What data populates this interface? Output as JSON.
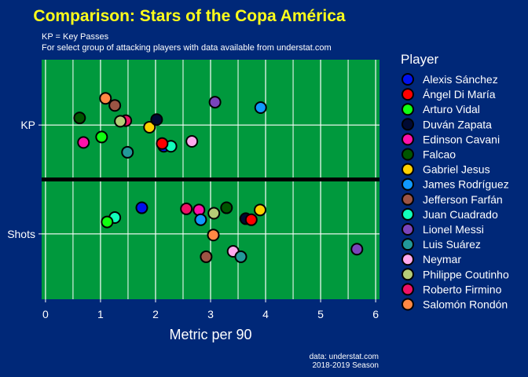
{
  "chart_data": {
    "type": "scatter",
    "title": "Comparison: Stars of the Copa América",
    "subtitle_lines": [
      "KP = Key Passes",
      "For select group of attacking players with data available from underst​at.com"
    ],
    "xlabel": "Metric per 90",
    "ylabel": "",
    "xlim": [
      -0.07,
      6.07
    ],
    "xticks": [
      "0",
      "1",
      "2",
      "3",
      "4",
      "5",
      "6"
    ],
    "ycategories": [
      "Shots",
      "KP"
    ],
    "caption_lines": [
      "data: understat.com",
      "2018-2019 Season"
    ],
    "legend": {
      "title": "Player",
      "position": "right"
    },
    "grid": true,
    "colors": {
      "background": "#002878",
      "panel": "#00993D",
      "title": "#FFFF1A",
      "divider": "#000000"
    },
    "players": [
      {
        "name": "Alexis Sánchez",
        "color": "#0011EE"
      },
      {
        "name": "Ángel Di María",
        "color": "#FF0000"
      },
      {
        "name": "Arturo Vidal",
        "color": "#11FF11"
      },
      {
        "name": "Duván Zapata",
        "color": "#000A33"
      },
      {
        "name": "Edinson Cavani",
        "color": "#FF11AA"
      },
      {
        "name": "Falcao",
        "color": "#005500"
      },
      {
        "name": "Gabriel Jesus",
        "color": "#FFD000"
      },
      {
        "name": "James Rodríguez",
        "color": "#1199FF"
      },
      {
        "name": "Jefferson Farfán",
        "color": "#9B5444"
      },
      {
        "name": "Juan Cuadrado",
        "color": "#11FFBB"
      },
      {
        "name": "Lionel Messi",
        "color": "#7A44BB"
      },
      {
        "name": "Luis Suárez",
        "color": "#229999"
      },
      {
        "name": "Neymar",
        "color": "#FFAAEE"
      },
      {
        "name": "Philippe Coutinho",
        "color": "#B5CC77"
      },
      {
        "name": "Roberto Firmino",
        "color": "#EE1166"
      },
      {
        "name": "Salomón Rondón",
        "color": "#FF8844"
      }
    ],
    "points": [
      {
        "player": "Salomón Rondón",
        "metric": "KP",
        "x": 1.09,
        "y_jitter": 2.245
      },
      {
        "player": "Jefferson Farfán",
        "metric": "KP",
        "x": 1.26,
        "y_jitter": 2.18
      },
      {
        "player": "Falcao",
        "metric": "KP",
        "x": 0.62,
        "y_jitter": 2.065
      },
      {
        "player": "Roberto Firmino",
        "metric": "KP",
        "x": 1.46,
        "y_jitter": 2.04
      },
      {
        "player": "Philippe Coutinho",
        "metric": "KP",
        "x": 1.36,
        "y_jitter": 2.035
      },
      {
        "player": "Gabriel Jesus",
        "metric": "KP",
        "x": 1.89,
        "y_jitter": 1.98
      },
      {
        "player": "Duván Zapata",
        "metric": "KP",
        "x": 2.02,
        "y_jitter": 2.05
      },
      {
        "player": "Arturo Vidal",
        "metric": "KP",
        "x": 1.02,
        "y_jitter": 1.89
      },
      {
        "player": "Edinson Cavani",
        "metric": "KP",
        "x": 0.69,
        "y_jitter": 1.84
      },
      {
        "player": "Alexis Sánchez",
        "metric": "KP",
        "x": 2.15,
        "y_jitter": 1.805
      },
      {
        "player": "Juan Cuadrado",
        "metric": "KP",
        "x": 2.28,
        "y_jitter": 1.805
      },
      {
        "player": "Ángel Di María",
        "metric": "KP",
        "x": 2.12,
        "y_jitter": 1.83
      },
      {
        "player": "Neymar",
        "metric": "KP",
        "x": 2.66,
        "y_jitter": 1.85
      },
      {
        "player": "Luis Suárez",
        "metric": "KP",
        "x": 1.49,
        "y_jitter": 1.75
      },
      {
        "player": "Lionel Messi",
        "metric": "KP",
        "x": 3.08,
        "y_jitter": 2.21
      },
      {
        "player": "James Rodríguez",
        "metric": "KP",
        "x": 3.91,
        "y_jitter": 2.16
      },
      {
        "player": "Alexis Sánchez",
        "metric": "Shots",
        "x": 1.75,
        "y_jitter": 1.24
      },
      {
        "player": "Juan Cuadrado",
        "metric": "Shots",
        "x": 1.26,
        "y_jitter": 1.15
      },
      {
        "player": "Arturo Vidal",
        "metric": "Shots",
        "x": 1.12,
        "y_jitter": 1.11
      },
      {
        "player": "Roberto Firmino",
        "metric": "Shots",
        "x": 2.56,
        "y_jitter": 1.23
      },
      {
        "player": "Edinson Cavani",
        "metric": "Shots",
        "x": 2.79,
        "y_jitter": 1.22
      },
      {
        "player": "James Rodríguez",
        "metric": "Shots",
        "x": 2.82,
        "y_jitter": 1.13
      },
      {
        "player": "Philippe Coutinho",
        "metric": "Shots",
        "x": 3.06,
        "y_jitter": 1.19
      },
      {
        "player": "Falcao",
        "metric": "Shots",
        "x": 3.29,
        "y_jitter": 1.24
      },
      {
        "player": "Duván Zapata",
        "metric": "Shots",
        "x": 3.64,
        "y_jitter": 1.14
      },
      {
        "player": "Ángel Di María",
        "metric": "Shots",
        "x": 3.74,
        "y_jitter": 1.13
      },
      {
        "player": "Gabriel Jesus",
        "metric": "Shots",
        "x": 3.9,
        "y_jitter": 1.22
      },
      {
        "player": "Salomón Rondón",
        "metric": "Shots",
        "x": 3.05,
        "y_jitter": 0.99
      },
      {
        "player": "Jefferson Farfán",
        "metric": "Shots",
        "x": 2.92,
        "y_jitter": 0.79
      },
      {
        "player": "Neymar",
        "metric": "Shots",
        "x": 3.41,
        "y_jitter": 0.84
      },
      {
        "player": "Luis Suárez",
        "metric": "Shots",
        "x": 3.55,
        "y_jitter": 0.79
      },
      {
        "player": "Lionel Messi",
        "metric": "Shots",
        "x": 5.66,
        "y_jitter": 0.86
      }
    ]
  }
}
